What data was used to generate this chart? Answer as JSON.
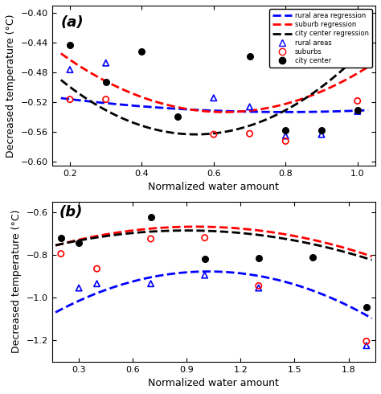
{
  "panel_a": {
    "title": "(a)",
    "xlabel": "Normalized water amount",
    "ylabel": "Decreased temperature (°C)",
    "xlim": [
      0.15,
      1.05
    ],
    "ylim": [
      -0.605,
      -0.39
    ],
    "yticks": [
      -0.6,
      -0.56,
      -0.52,
      -0.48,
      -0.44,
      -0.4
    ],
    "xticks": [
      0.2,
      0.4,
      0.6,
      0.8,
      1.0
    ],
    "rural_pts_x": [
      0.2,
      0.3,
      0.6,
      0.7,
      0.8,
      0.9,
      1.0
    ],
    "rural_pts_y": [
      -0.476,
      -0.467,
      -0.514,
      -0.526,
      -0.565,
      -0.563,
      -0.532
    ],
    "suburb_pts_x": [
      0.2,
      0.3,
      0.6,
      0.7,
      0.8,
      1.0
    ],
    "suburb_pts_y": [
      -0.516,
      -0.516,
      -0.563,
      -0.562,
      -0.572,
      -0.518
    ],
    "city_pts_x": [
      0.2,
      0.3,
      0.4,
      0.5,
      0.7,
      0.8,
      0.9,
      1.0
    ],
    "city_pts_y": [
      -0.443,
      -0.493,
      -0.452,
      -0.539,
      -0.458,
      -0.557,
      -0.557,
      -0.53
    ],
    "rural_curve": {
      "a": 0.048,
      "x0": 0.8,
      "c": -0.533
    },
    "suburb_curve": {
      "a": 0.38,
      "x0": 0.63,
      "c": -0.533
    },
    "city_curve": {
      "a": 0.52,
      "x0": 0.55,
      "c": -0.563
    }
  },
  "panel_b": {
    "title": "(b)",
    "xlabel": "Normalized water amount",
    "ylabel": "Decreased temperature (°C)",
    "xlim": [
      0.15,
      1.95
    ],
    "ylim": [
      -1.3,
      -0.55
    ],
    "yticks": [
      -1.2,
      -1.0,
      -0.8,
      -0.6
    ],
    "xticks": [
      0.3,
      0.6,
      0.9,
      1.2,
      1.5,
      1.8
    ],
    "rural_pts_x": [
      0.3,
      0.4,
      0.7,
      1.0,
      1.3,
      1.9
    ],
    "rural_pts_y": [
      -0.955,
      -0.935,
      -0.935,
      -0.895,
      -0.955,
      -1.225
    ],
    "suburb_pts_x": [
      0.2,
      0.4,
      0.7,
      1.0,
      1.3,
      1.9
    ],
    "suburb_pts_y": [
      -0.795,
      -0.865,
      -0.725,
      -0.72,
      -0.945,
      -1.205
    ],
    "city_pts_x": [
      0.2,
      0.3,
      0.7,
      1.0,
      1.3,
      1.6,
      1.9
    ],
    "city_pts_y": [
      -0.72,
      -0.745,
      -0.625,
      -0.82,
      -0.815,
      -0.81,
      -1.045
    ],
    "rural_curve": {
      "a": -0.265,
      "x0": 1.02,
      "c": -0.878
    },
    "suburb_curve": {
      "a": -0.145,
      "x0": 0.95,
      "c": -0.668
    },
    "city_curve": {
      "a": -0.13,
      "x0": 0.9,
      "c": -0.686
    }
  },
  "colors": {
    "rural": "#0000FF",
    "suburb": "#FF0000",
    "city": "#000000"
  }
}
